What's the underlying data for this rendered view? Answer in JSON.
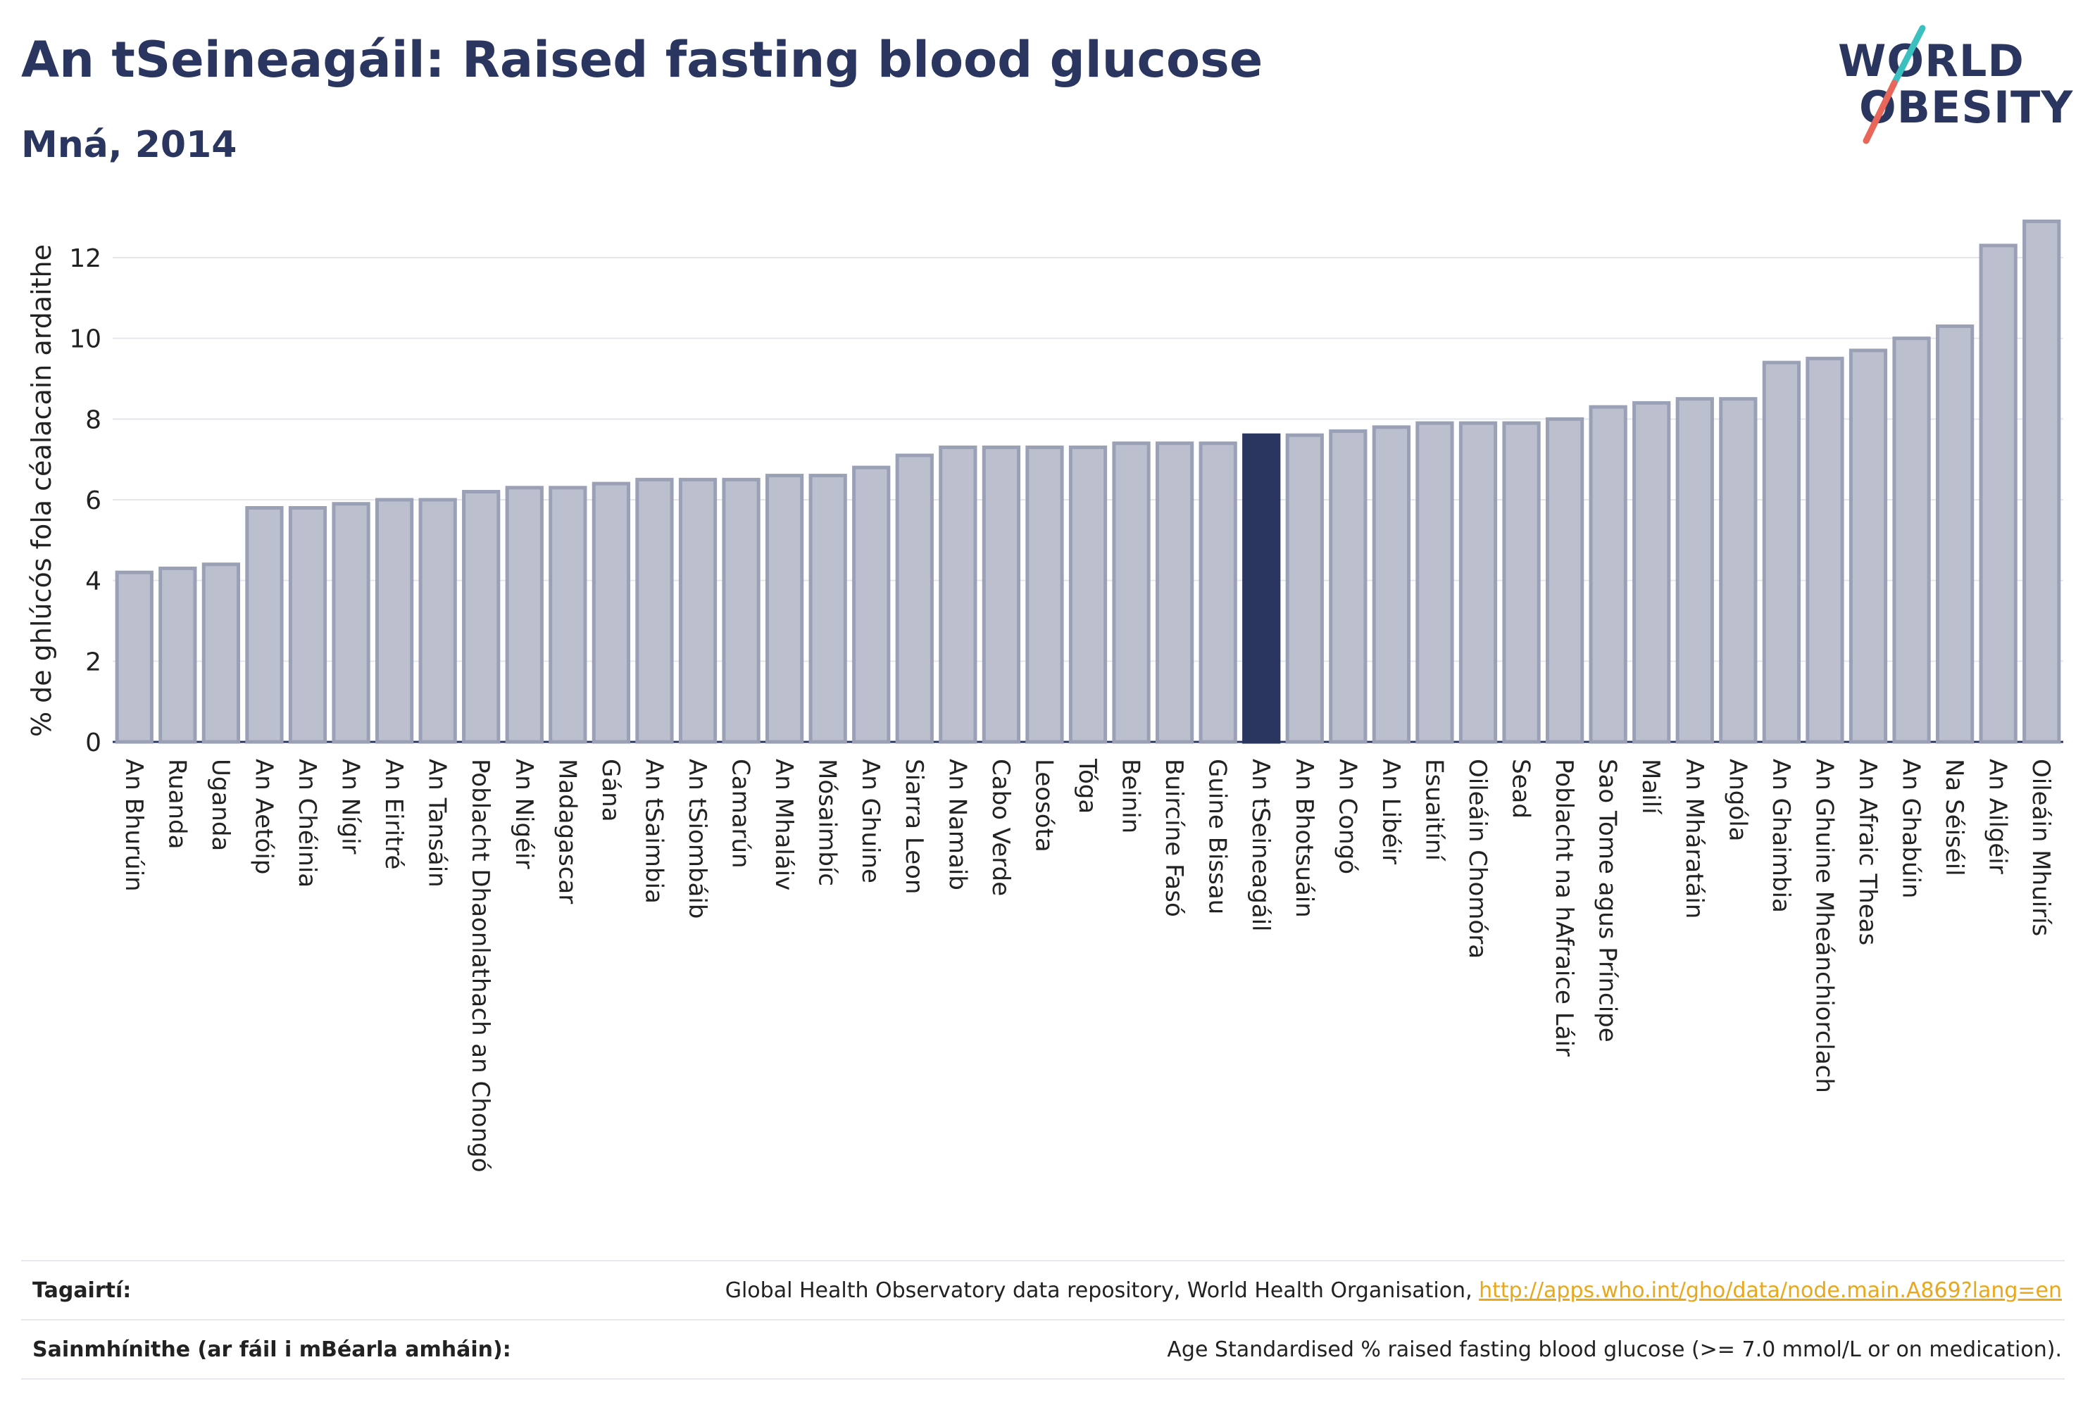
{
  "title": "An tSeineagáil: Raised fasting blood glucose",
  "subtitle": "Mná, 2014",
  "logo": {
    "line1": "WORLD",
    "line2": "OBESITY"
  },
  "colors": {
    "bar": "#bcc0ce",
    "bar_border": "#9aa0b6",
    "highlight": "#2a3560",
    "link": "#e8a71c",
    "text": "#2a3560"
  },
  "chart_data": {
    "type": "bar",
    "ylabel": "% de ghlúcós fola céalacain ardaithe",
    "xlabel": "",
    "ylim": [
      0,
      13.5
    ],
    "yticks": [
      0,
      2,
      4,
      6,
      8,
      10,
      12
    ],
    "grid": true,
    "highlight": "An tSeineagáil",
    "categories": [
      "An Bhurúin",
      "Ruanda",
      "Uganda",
      "An Aetóip",
      "An Chéinia",
      "An Nígir",
      "An Eiritré",
      "An Tansáin",
      "Poblacht Dhaonlathach an Chongó",
      "An Nigéir",
      "Madagascar",
      "Gána",
      "An tSaimbia",
      "An tSiombáib",
      "Camarún",
      "An Mhaláiv",
      "Mósaimbíc",
      "An Ghuine",
      "Siarra Leon",
      "An Namaib",
      "Cabo Verde",
      "Leosóta",
      "Tóga",
      "Beinin",
      "Buircíne Fasó",
      "Guine Bissau",
      "An tSeineagáil",
      "An Bhotsuáin",
      "An Congó",
      "An Libéir",
      "Esuaitíní",
      "Oileáin Chomóra",
      "Sead",
      "Poblacht na hAfraice Láir",
      "Sao Tome agus Príncipe",
      "Mailí",
      "An Mháratáin",
      "Angóla",
      "An Ghaimbia",
      "An Ghuine Mheánchiorclach",
      "An Afraic Theas",
      "An Ghabúin",
      "Na Séiséil",
      "An Ailgéir",
      "Oileáin Mhuirís"
    ],
    "values": [
      4.2,
      4.3,
      4.4,
      5.8,
      5.8,
      5.9,
      6.0,
      6.0,
      6.2,
      6.3,
      6.3,
      6.4,
      6.5,
      6.5,
      6.5,
      6.6,
      6.6,
      6.8,
      7.1,
      7.3,
      7.3,
      7.3,
      7.3,
      7.4,
      7.4,
      7.4,
      7.6,
      7.6,
      7.7,
      7.8,
      7.9,
      7.9,
      7.9,
      8.0,
      8.3,
      8.4,
      8.5,
      8.5,
      9.4,
      9.5,
      9.7,
      10.0,
      10.3,
      12.3,
      12.9
    ]
  },
  "references": [
    {
      "label": "Tagairtí:",
      "text": "Global Health Observatory data repository, World Health Organisation, ",
      "link": "http://apps.who.int/gho/data/node.main.A869?lang=en"
    },
    {
      "label": "Sainmhínithe (ar fáil i mBéarla amháin):",
      "text": "Age Standardised % raised fasting blood glucose (>= 7.0 mmol/L or on medication).",
      "link": ""
    }
  ]
}
